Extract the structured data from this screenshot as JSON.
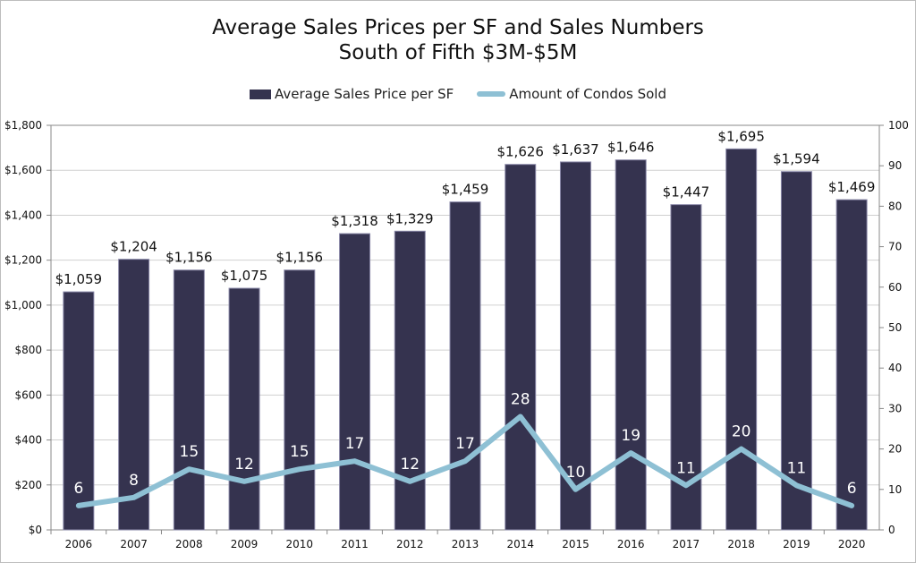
{
  "title_line1": "Average Sales Prices per SF and Sales Numbers",
  "title_line2": "South of Fifth $3M-$5M",
  "legend": {
    "bar_label": "Average Sales Price per SF",
    "line_label": "Amount of Condos Sold"
  },
  "colors": {
    "bar": "#35334f",
    "bar_edge": "#8a88a8",
    "line": "#8ec0d4",
    "grid": "#d0d0d0",
    "axis": "#888888"
  },
  "chart_data": {
    "type": "bar",
    "title": "Average Sales Prices per SF and Sales Numbers",
    "subtitle": "South of Fifth $3M-$5M",
    "categories": [
      "2006",
      "2007",
      "2008",
      "2009",
      "2010",
      "2011",
      "2012",
      "2013",
      "2014",
      "2015",
      "2016",
      "2017",
      "2018",
      "2019",
      "2020"
    ],
    "series": [
      {
        "name": "Average Sales Price per SF",
        "type": "bar",
        "axis": "left",
        "values": [
          1059,
          1204,
          1156,
          1075,
          1156,
          1318,
          1329,
          1459,
          1626,
          1637,
          1646,
          1447,
          1695,
          1594,
          1469
        ],
        "labels": [
          "$1,059",
          "$1,204",
          "$1,156",
          "$1,075",
          "$1,156",
          "$1,318",
          "$1,329",
          "$1,459",
          "$1,626",
          "$1,637",
          "$1,646",
          "$1,447",
          "$1,695",
          "$1,594",
          "$1,469"
        ]
      },
      {
        "name": "Amount of Condos Sold",
        "type": "line",
        "axis": "right",
        "values": [
          6,
          8,
          15,
          12,
          15,
          17,
          12,
          17,
          28,
          10,
          19,
          11,
          20,
          11,
          6
        ]
      }
    ],
    "ylim_left": [
      0,
      1800
    ],
    "ylim_right": [
      0,
      100
    ],
    "left_ticks": [
      "$0",
      "$200",
      "$400",
      "$600",
      "$800",
      "$1,000",
      "$1,200",
      "$1,400",
      "$1,600",
      "$1,800"
    ],
    "right_ticks": [
      "0",
      "10",
      "20",
      "30",
      "40",
      "50",
      "60",
      "70",
      "80",
      "90",
      "100"
    ],
    "grid": true,
    "legend_position": "top"
  }
}
